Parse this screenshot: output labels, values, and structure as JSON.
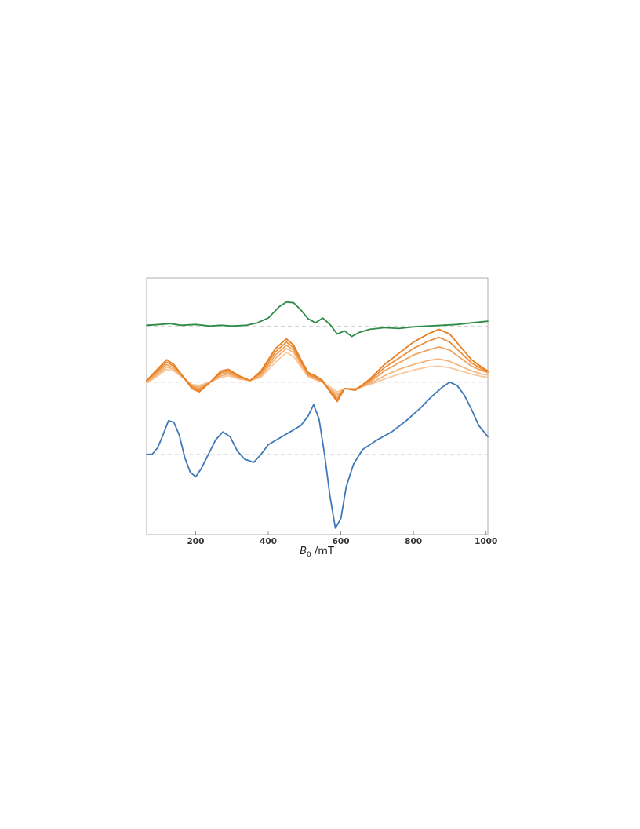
{
  "chart_data": {
    "type": "line",
    "title": "",
    "xlabel": "B0 /mT",
    "xlabel_parts": {
      "symbol": "B",
      "subscript": "0",
      "unit": " /mT"
    },
    "ylabel": "",
    "xlim": [
      65,
      1005
    ],
    "ylim": [
      -8,
      8
    ],
    "xticks": [
      200,
      400,
      600,
      800,
      1000
    ],
    "grid": false,
    "legend": "none",
    "baselines": [
      5.0,
      1.5,
      -3.0
    ],
    "series": [
      {
        "color": "#2e8b47",
        "points": [
          [
            65,
            5.05
          ],
          [
            100,
            5.1
          ],
          [
            130,
            5.15
          ],
          [
            160,
            5.05
          ],
          [
            200,
            5.1
          ],
          [
            240,
            5.0
          ],
          [
            270,
            5.05
          ],
          [
            300,
            5.0
          ],
          [
            340,
            5.05
          ],
          [
            370,
            5.2
          ],
          [
            400,
            5.5
          ],
          [
            430,
            6.2
          ],
          [
            450,
            6.5
          ],
          [
            470,
            6.45
          ],
          [
            490,
            6.0
          ],
          [
            510,
            5.45
          ],
          [
            530,
            5.2
          ],
          [
            550,
            5.5
          ],
          [
            570,
            5.1
          ],
          [
            590,
            4.5
          ],
          [
            610,
            4.7
          ],
          [
            630,
            4.35
          ],
          [
            650,
            4.6
          ],
          [
            680,
            4.8
          ],
          [
            720,
            4.9
          ],
          [
            760,
            4.85
          ],
          [
            800,
            4.95
          ],
          [
            840,
            5.0
          ],
          [
            880,
            5.05
          ],
          [
            920,
            5.1
          ],
          [
            960,
            5.2
          ],
          [
            1005,
            5.3
          ]
        ]
      },
      {
        "color": "#e87d1e",
        "points": [
          [
            65,
            1.6
          ],
          [
            90,
            2.2
          ],
          [
            120,
            2.9
          ],
          [
            140,
            2.6
          ],
          [
            160,
            2.0
          ],
          [
            190,
            1.1
          ],
          [
            210,
            0.9
          ],
          [
            240,
            1.5
          ],
          [
            270,
            2.2
          ],
          [
            290,
            2.3
          ],
          [
            320,
            1.9
          ],
          [
            350,
            1.6
          ],
          [
            380,
            2.2
          ],
          [
            420,
            3.6
          ],
          [
            450,
            4.2
          ],
          [
            470,
            3.8
          ],
          [
            490,
            2.9
          ],
          [
            510,
            2.1
          ],
          [
            530,
            1.9
          ],
          [
            550,
            1.6
          ],
          [
            570,
            0.9
          ],
          [
            590,
            0.3
          ],
          [
            610,
            1.1
          ],
          [
            640,
            1.0
          ],
          [
            680,
            1.7
          ],
          [
            720,
            2.6
          ],
          [
            760,
            3.3
          ],
          [
            800,
            4.0
          ],
          [
            840,
            4.5
          ],
          [
            870,
            4.8
          ],
          [
            900,
            4.5
          ],
          [
            930,
            3.7
          ],
          [
            960,
            2.9
          ],
          [
            990,
            2.4
          ],
          [
            1005,
            2.2
          ]
        ]
      },
      {
        "color": "#ec9040",
        "points": [
          [
            65,
            1.6
          ],
          [
            90,
            2.1
          ],
          [
            120,
            2.75
          ],
          [
            140,
            2.5
          ],
          [
            160,
            2.0
          ],
          [
            190,
            1.2
          ],
          [
            210,
            1.0
          ],
          [
            240,
            1.5
          ],
          [
            270,
            2.1
          ],
          [
            290,
            2.2
          ],
          [
            320,
            1.85
          ],
          [
            350,
            1.6
          ],
          [
            380,
            2.1
          ],
          [
            420,
            3.4
          ],
          [
            450,
            4.0
          ],
          [
            470,
            3.65
          ],
          [
            490,
            2.8
          ],
          [
            510,
            2.0
          ],
          [
            530,
            1.8
          ],
          [
            550,
            1.55
          ],
          [
            570,
            0.95
          ],
          [
            590,
            0.45
          ],
          [
            610,
            1.1
          ],
          [
            640,
            1.05
          ],
          [
            680,
            1.6
          ],
          [
            720,
            2.4
          ],
          [
            760,
            3.0
          ],
          [
            800,
            3.6
          ],
          [
            840,
            4.05
          ],
          [
            870,
            4.3
          ],
          [
            900,
            4.0
          ],
          [
            930,
            3.35
          ],
          [
            960,
            2.7
          ],
          [
            990,
            2.3
          ],
          [
            1005,
            2.15
          ]
        ]
      },
      {
        "color": "#f0a460",
        "points": [
          [
            65,
            1.55
          ],
          [
            90,
            2.0
          ],
          [
            120,
            2.6
          ],
          [
            140,
            2.4
          ],
          [
            160,
            1.95
          ],
          [
            190,
            1.25
          ],
          [
            210,
            1.1
          ],
          [
            240,
            1.5
          ],
          [
            270,
            2.0
          ],
          [
            290,
            2.1
          ],
          [
            320,
            1.8
          ],
          [
            350,
            1.6
          ],
          [
            380,
            2.0
          ],
          [
            420,
            3.2
          ],
          [
            450,
            3.8
          ],
          [
            470,
            3.5
          ],
          [
            490,
            2.7
          ],
          [
            510,
            1.95
          ],
          [
            530,
            1.75
          ],
          [
            550,
            1.5
          ],
          [
            570,
            1.0
          ],
          [
            590,
            0.6
          ],
          [
            610,
            1.1
          ],
          [
            640,
            1.05
          ],
          [
            680,
            1.5
          ],
          [
            720,
            2.2
          ],
          [
            760,
            2.7
          ],
          [
            800,
            3.2
          ],
          [
            840,
            3.5
          ],
          [
            870,
            3.7
          ],
          [
            900,
            3.5
          ],
          [
            930,
            3.0
          ],
          [
            960,
            2.5
          ],
          [
            990,
            2.2
          ],
          [
            1005,
            2.1
          ]
        ]
      },
      {
        "color": "#f4b67e",
        "points": [
          [
            65,
            1.5
          ],
          [
            90,
            1.9
          ],
          [
            120,
            2.45
          ],
          [
            140,
            2.3
          ],
          [
            160,
            1.9
          ],
          [
            190,
            1.3
          ],
          [
            210,
            1.2
          ],
          [
            240,
            1.5
          ],
          [
            270,
            1.9
          ],
          [
            290,
            2.0
          ],
          [
            320,
            1.75
          ],
          [
            350,
            1.6
          ],
          [
            380,
            1.9
          ],
          [
            420,
            3.0
          ],
          [
            450,
            3.6
          ],
          [
            470,
            3.35
          ],
          [
            490,
            2.6
          ],
          [
            510,
            1.9
          ],
          [
            530,
            1.7
          ],
          [
            550,
            1.5
          ],
          [
            570,
            1.1
          ],
          [
            590,
            0.75
          ],
          [
            610,
            1.1
          ],
          [
            640,
            1.05
          ],
          [
            680,
            1.4
          ],
          [
            720,
            1.9
          ],
          [
            760,
            2.3
          ],
          [
            800,
            2.6
          ],
          [
            840,
            2.85
          ],
          [
            870,
            2.95
          ],
          [
            900,
            2.8
          ],
          [
            930,
            2.5
          ],
          [
            960,
            2.2
          ],
          [
            990,
            2.0
          ],
          [
            1005,
            1.95
          ]
        ]
      },
      {
        "color": "#f7c89c",
        "points": [
          [
            65,
            1.45
          ],
          [
            90,
            1.8
          ],
          [
            120,
            2.3
          ],
          [
            140,
            2.2
          ],
          [
            160,
            1.85
          ],
          [
            190,
            1.35
          ],
          [
            210,
            1.3
          ],
          [
            240,
            1.5
          ],
          [
            270,
            1.8
          ],
          [
            290,
            1.9
          ],
          [
            320,
            1.7
          ],
          [
            350,
            1.6
          ],
          [
            380,
            1.8
          ],
          [
            420,
            2.75
          ],
          [
            450,
            3.35
          ],
          [
            470,
            3.1
          ],
          [
            490,
            2.45
          ],
          [
            510,
            1.85
          ],
          [
            530,
            1.65
          ],
          [
            550,
            1.5
          ],
          [
            570,
            1.2
          ],
          [
            590,
            0.9
          ],
          [
            610,
            1.1
          ],
          [
            640,
            1.1
          ],
          [
            680,
            1.35
          ],
          [
            720,
            1.7
          ],
          [
            760,
            2.0
          ],
          [
            800,
            2.25
          ],
          [
            840,
            2.45
          ],
          [
            870,
            2.5
          ],
          [
            900,
            2.4
          ],
          [
            930,
            2.2
          ],
          [
            960,
            2.0
          ],
          [
            990,
            1.85
          ],
          [
            1005,
            1.8
          ]
        ]
      },
      {
        "color": "#3f78b9",
        "points": [
          [
            65,
            -3.0
          ],
          [
            80,
            -3.0
          ],
          [
            95,
            -2.6
          ],
          [
            110,
            -1.8
          ],
          [
            125,
            -0.9
          ],
          [
            140,
            -1.0
          ],
          [
            155,
            -1.8
          ],
          [
            170,
            -3.2
          ],
          [
            185,
            -4.1
          ],
          [
            200,
            -4.4
          ],
          [
            215,
            -3.9
          ],
          [
            235,
            -3.0
          ],
          [
            255,
            -2.1
          ],
          [
            275,
            -1.6
          ],
          [
            295,
            -1.9
          ],
          [
            315,
            -2.8
          ],
          [
            335,
            -3.3
          ],
          [
            360,
            -3.5
          ],
          [
            380,
            -3.0
          ],
          [
            400,
            -2.4
          ],
          [
            430,
            -2.0
          ],
          [
            460,
            -1.6
          ],
          [
            490,
            -1.2
          ],
          [
            510,
            -0.6
          ],
          [
            525,
            0.1
          ],
          [
            540,
            -0.8
          ],
          [
            555,
            -3.0
          ],
          [
            570,
            -5.6
          ],
          [
            585,
            -7.6
          ],
          [
            600,
            -7.0
          ],
          [
            615,
            -5.0
          ],
          [
            635,
            -3.6
          ],
          [
            660,
            -2.7
          ],
          [
            700,
            -2.1
          ],
          [
            740,
            -1.6
          ],
          [
            780,
            -0.9
          ],
          [
            820,
            -0.1
          ],
          [
            850,
            0.6
          ],
          [
            880,
            1.2
          ],
          [
            900,
            1.5
          ],
          [
            920,
            1.3
          ],
          [
            940,
            0.7
          ],
          [
            960,
            -0.2
          ],
          [
            980,
            -1.2
          ],
          [
            1005,
            -1.9
          ]
        ]
      }
    ]
  }
}
